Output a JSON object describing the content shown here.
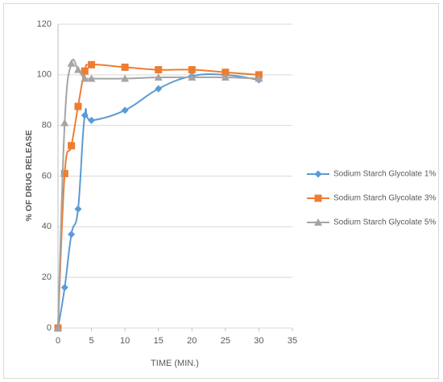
{
  "chart_data": {
    "type": "line",
    "x_label": "TIME (MIN.)",
    "y_label": "% OF DRUG RELEASE",
    "x": [
      0,
      1,
      2,
      3,
      4,
      5,
      10,
      15,
      20,
      25,
      30
    ],
    "series": [
      {
        "name": "Sodium Starch Glycolate 1%",
        "color": "#5b9bd5",
        "marker": "diamond",
        "values": [
          0,
          16,
          37,
          47,
          84,
          82,
          86,
          94.5,
          99.5,
          100,
          98
        ]
      },
      {
        "name": "Sodium Starch Glycolate 3%",
        "color": "#ed7d31",
        "marker": "square",
        "values": [
          0,
          61,
          72,
          87.5,
          101.5,
          104,
          103,
          102,
          102,
          101,
          100
        ]
      },
      {
        "name": "Sodium Starch Glycolate 5%",
        "color": "#a5a5a5",
        "marker": "triangle",
        "values": [
          0,
          81,
          104.5,
          102,
          98.5,
          98.5,
          98.5,
          99,
          99,
          99,
          98.5
        ]
      }
    ],
    "xlim": [
      0,
      35
    ],
    "xticks": [
      0,
      5,
      10,
      15,
      20,
      25,
      30,
      35
    ],
    "ylim": [
      0,
      120
    ],
    "yticks": [
      0,
      20,
      40,
      60,
      80,
      100,
      120
    ],
    "grid": true,
    "legend": "right"
  }
}
